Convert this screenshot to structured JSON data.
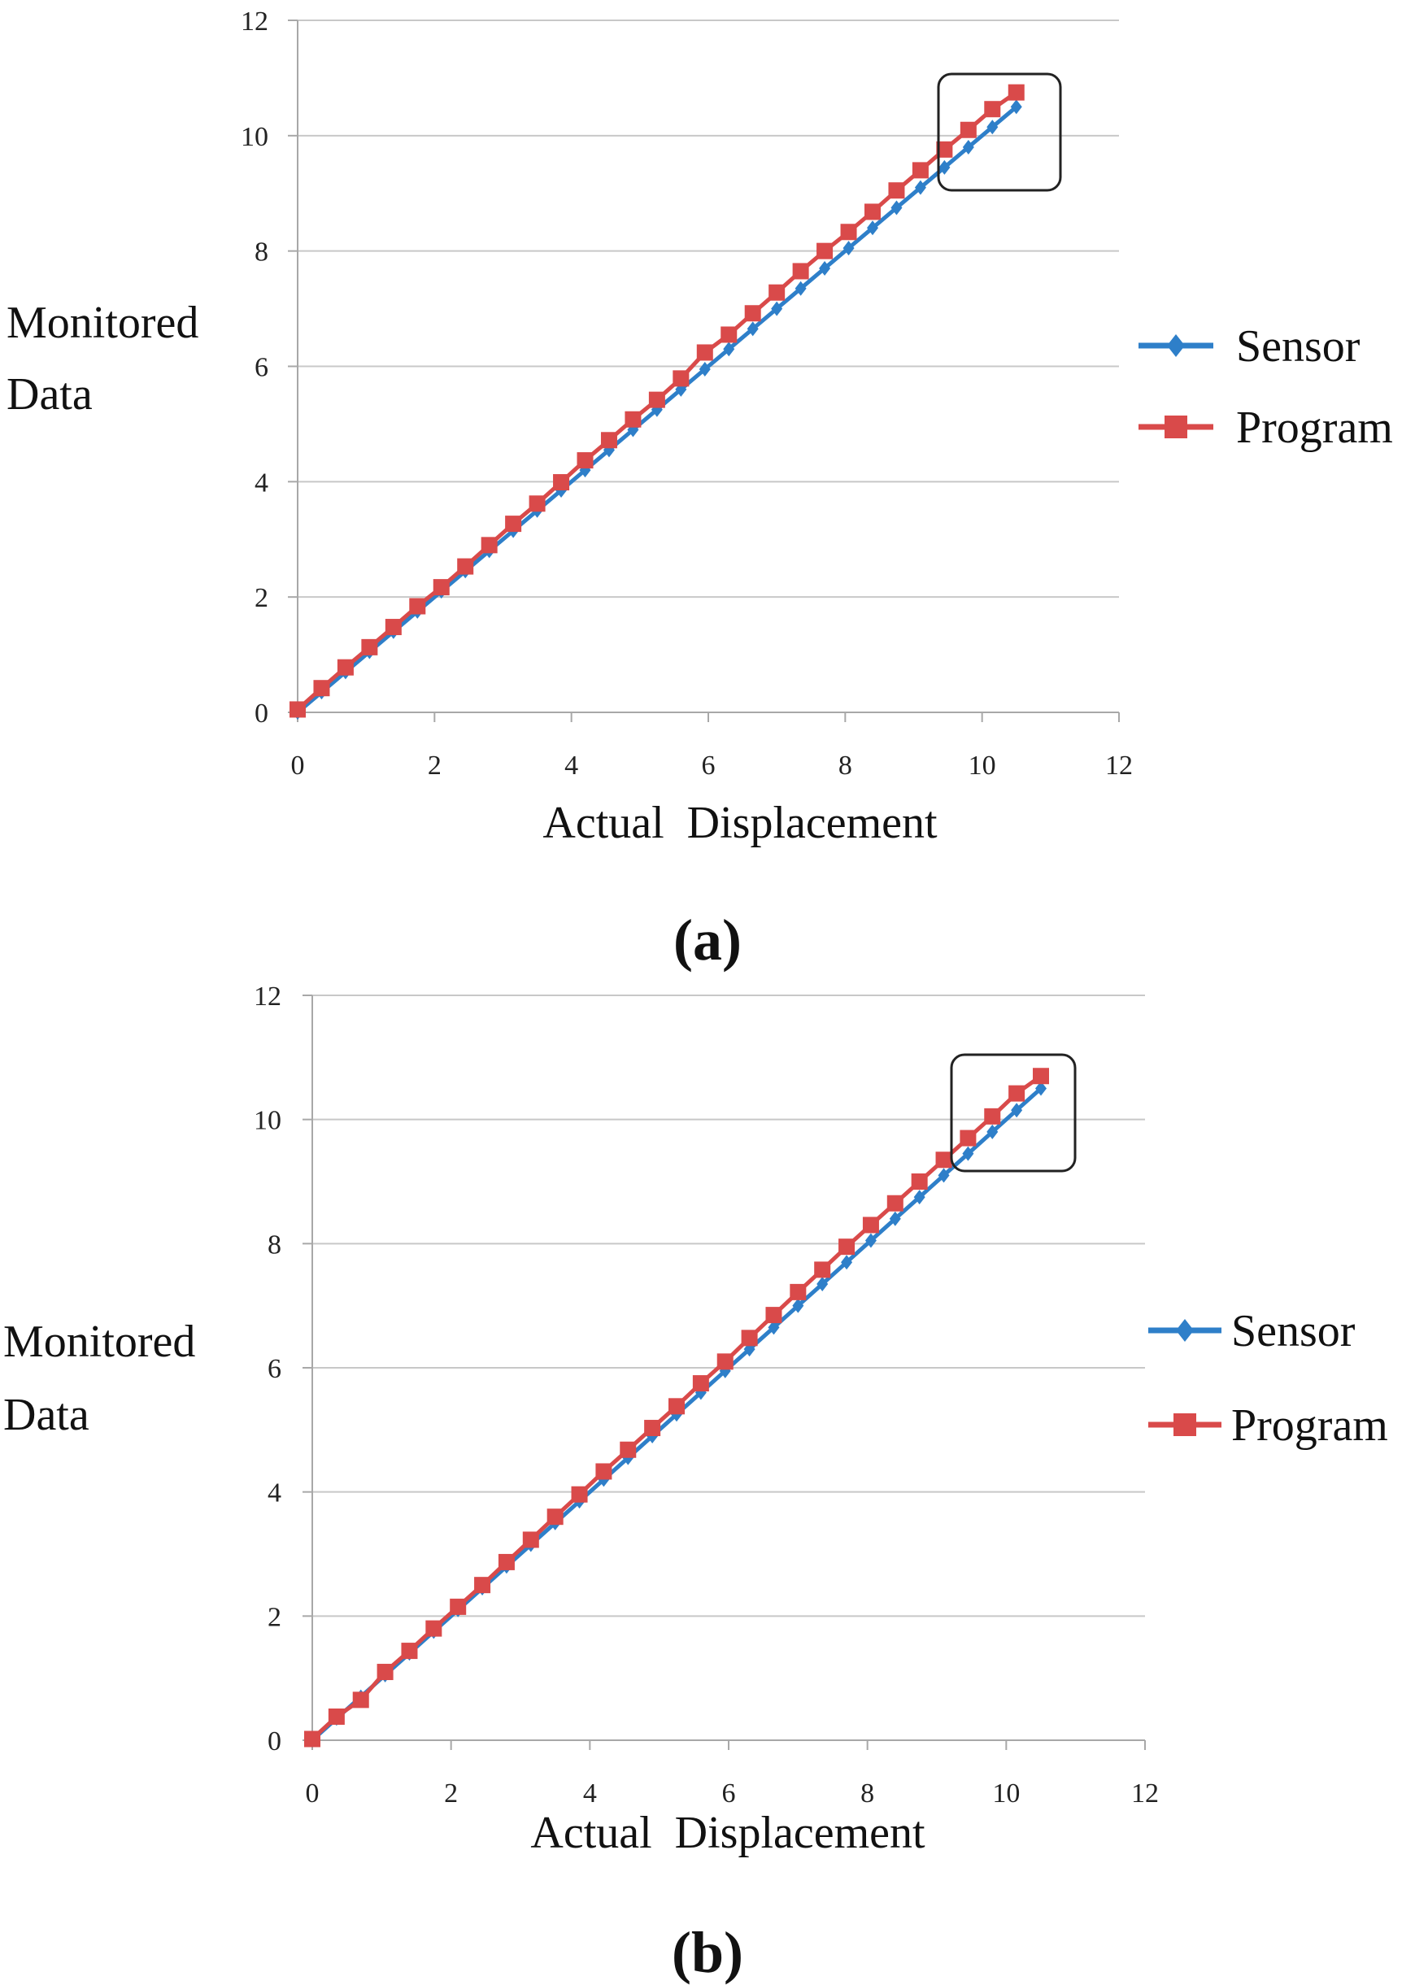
{
  "chart_data": [
    {
      "type": "line",
      "panel_label": "(a)",
      "xlabel": "Actual  Displacement",
      "ylabel_lines": [
        "Monitored",
        "Data"
      ],
      "xlim": [
        0,
        12
      ],
      "ylim": [
        0,
        12
      ],
      "xticks": [
        0,
        2,
        4,
        6,
        8,
        10,
        12
      ],
      "yticks": [
        0,
        2,
        4,
        6,
        8,
        10,
        12
      ],
      "grid": "horizontal",
      "legend_position": "right",
      "x": [
        0,
        0.35,
        0.7,
        1.05,
        1.4,
        1.75,
        2.1,
        2.45,
        2.8,
        3.15,
        3.5,
        3.85,
        4.2,
        4.55,
        4.9,
        5.25,
        5.6,
        5.95,
        6.3,
        6.65,
        7.0,
        7.35,
        7.7,
        8.05,
        8.4,
        8.75,
        9.1,
        9.45,
        9.8,
        10.15,
        10.5
      ],
      "series": [
        {
          "name": "Sensor",
          "color": "#2e7fc9",
          "marker": "diamond",
          "values": [
            0,
            0.35,
            0.7,
            1.05,
            1.4,
            1.75,
            2.1,
            2.45,
            2.8,
            3.15,
            3.5,
            3.85,
            4.2,
            4.55,
            4.9,
            5.25,
            5.6,
            5.95,
            6.3,
            6.65,
            7.0,
            7.35,
            7.7,
            8.05,
            8.4,
            8.75,
            9.1,
            9.45,
            9.8,
            10.15,
            10.5
          ]
        },
        {
          "name": "Program",
          "color": "#d94a4a",
          "marker": "square",
          "values": [
            0.05,
            0.42,
            0.78,
            1.13,
            1.48,
            1.84,
            2.17,
            2.53,
            2.9,
            3.27,
            3.62,
            3.99,
            4.37,
            4.72,
            5.08,
            5.42,
            5.79,
            6.24,
            6.55,
            6.92,
            7.28,
            7.65,
            8.0,
            8.33,
            8.68,
            9.05,
            9.4,
            9.76,
            10.1,
            10.46,
            10.75
          ]
        }
      ],
      "annotation": "highlight box around upper-right end of both lines"
    },
    {
      "type": "line",
      "panel_label": "(b)",
      "xlabel": "Actual  Displacement",
      "ylabel_lines": [
        "Monitored",
        "Data"
      ],
      "xlim": [
        0,
        12
      ],
      "ylim": [
        0,
        12
      ],
      "xticks": [
        0,
        2,
        4,
        6,
        8,
        10,
        12
      ],
      "yticks": [
        0,
        2,
        4,
        6,
        8,
        10,
        12
      ],
      "grid": "horizontal",
      "legend_position": "right",
      "x": [
        0,
        0.35,
        0.7,
        1.05,
        1.4,
        1.75,
        2.1,
        2.45,
        2.8,
        3.15,
        3.5,
        3.85,
        4.2,
        4.55,
        4.9,
        5.25,
        5.6,
        5.95,
        6.3,
        6.65,
        7.0,
        7.35,
        7.7,
        8.05,
        8.4,
        8.75,
        9.1,
        9.45,
        9.8,
        10.15,
        10.5
      ],
      "series": [
        {
          "name": "Sensor",
          "color": "#2e7fc9",
          "marker": "diamond",
          "values": [
            0,
            0.35,
            0.7,
            1.05,
            1.4,
            1.75,
            2.1,
            2.45,
            2.8,
            3.15,
            3.5,
            3.85,
            4.2,
            4.55,
            4.9,
            5.25,
            5.6,
            5.95,
            6.3,
            6.65,
            7.0,
            7.35,
            7.7,
            8.05,
            8.4,
            8.75,
            9.1,
            9.45,
            9.8,
            10.15,
            10.5
          ]
        },
        {
          "name": "Program",
          "color": "#d94a4a",
          "marker": "square",
          "values": [
            0.02,
            0.38,
            0.65,
            1.1,
            1.44,
            1.8,
            2.15,
            2.5,
            2.87,
            3.23,
            3.6,
            3.96,
            4.33,
            4.68,
            5.03,
            5.38,
            5.75,
            6.1,
            6.48,
            6.85,
            7.22,
            7.58,
            7.95,
            8.3,
            8.65,
            9.0,
            9.35,
            9.7,
            10.05,
            10.42,
            10.7
          ]
        }
      ],
      "annotation": "highlight box around upper-right end of both lines"
    }
  ]
}
